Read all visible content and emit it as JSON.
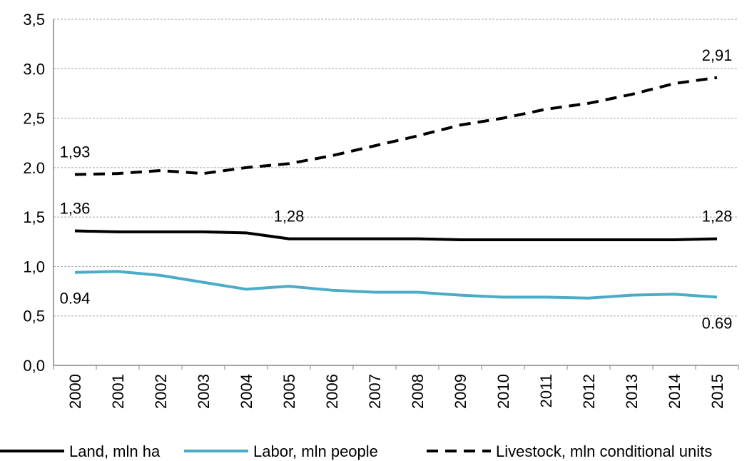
{
  "chart_data": {
    "type": "line",
    "categories": [
      "2000",
      "2001",
      "2002",
      "2003",
      "2004",
      "2005",
      "2006",
      "2007",
      "2008",
      "2009",
      "2010",
      "2011",
      "2012",
      "2013",
      "2014",
      "2015"
    ],
    "series": [
      {
        "name": "Land, mln ha",
        "color": "#000000",
        "line_style": "solid",
        "values": [
          1.36,
          1.35,
          1.35,
          1.35,
          1.34,
          1.28,
          1.28,
          1.28,
          1.28,
          1.27,
          1.27,
          1.27,
          1.27,
          1.27,
          1.27,
          1.28
        ],
        "value_labels": [
          "1,36",
          null,
          null,
          null,
          null,
          "1,28",
          null,
          null,
          null,
          null,
          null,
          null,
          null,
          null,
          null,
          "1,28"
        ]
      },
      {
        "name": "Labor, mln people",
        "color": "#4bacc6",
        "line_style": "solid",
        "values": [
          0.94,
          0.95,
          0.91,
          0.84,
          0.77,
          0.8,
          0.76,
          0.74,
          0.74,
          0.71,
          0.69,
          0.69,
          0.68,
          0.71,
          0.72,
          0.69
        ],
        "value_labels": [
          "0.94",
          null,
          null,
          null,
          null,
          null,
          null,
          null,
          null,
          null,
          null,
          null,
          null,
          null,
          null,
          "0.69"
        ]
      },
      {
        "name": "Livestock, mln conditional units",
        "color": "#000000",
        "line_style": "dashed",
        "values": [
          1.93,
          1.94,
          1.97,
          1.94,
          2.0,
          2.04,
          2.12,
          2.22,
          2.32,
          2.43,
          2.5,
          2.59,
          2.65,
          2.74,
          2.85,
          2.91
        ],
        "value_labels": [
          "1,93",
          null,
          null,
          null,
          null,
          null,
          null,
          null,
          null,
          null,
          null,
          null,
          null,
          null,
          null,
          "2,91"
        ]
      }
    ],
    "ylim": [
      0,
      3.5
    ],
    "yticks": [
      {
        "value": 0,
        "label": "0,0"
      },
      {
        "value": 0.5,
        "label": "0,5"
      },
      {
        "value": 1,
        "label": "1,0"
      },
      {
        "value": 1.5,
        "label": "1,5"
      },
      {
        "value": 2,
        "label": "2.0"
      },
      {
        "value": 2.5,
        "label": "2,5"
      },
      {
        "value": 3,
        "label": "3.0"
      },
      {
        "value": 3.5,
        "label": "3,5"
      }
    ],
    "grid": true,
    "legend": "bottom"
  }
}
